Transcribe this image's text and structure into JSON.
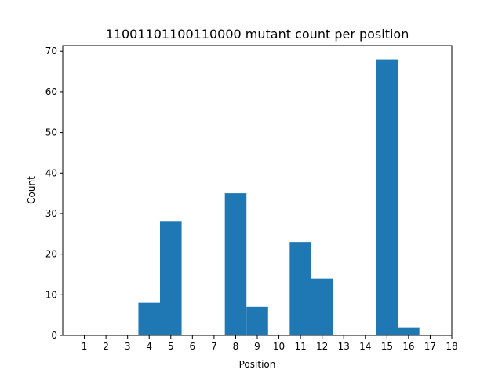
{
  "chart_data": {
    "type": "bar",
    "title": "11001101100110000 mutant count per position",
    "xlabel": "Position",
    "ylabel": "Count",
    "x_ticks": [
      1,
      2,
      3,
      4,
      5,
      6,
      7,
      8,
      9,
      10,
      11,
      12,
      13,
      14,
      15,
      16,
      17,
      18
    ],
    "x_range": [
      0,
      18
    ],
    "ylim": [
      0,
      71.4
    ],
    "y_ticks": [
      0,
      10,
      20,
      30,
      40,
      50,
      60,
      70
    ],
    "bar_color": "#1f77b4",
    "bars": [
      {
        "x_start": 3.5,
        "x_end": 4.5,
        "value": 8
      },
      {
        "x_start": 4.5,
        "x_end": 5.5,
        "value": 28
      },
      {
        "x_start": 7.5,
        "x_end": 8.5,
        "value": 35
      },
      {
        "x_start": 8.5,
        "x_end": 9.5,
        "value": 7
      },
      {
        "x_start": 10.5,
        "x_end": 11.5,
        "value": 23
      },
      {
        "x_start": 11.5,
        "x_end": 12.5,
        "value": 14
      },
      {
        "x_start": 14.5,
        "x_end": 15.5,
        "value": 68
      },
      {
        "x_start": 15.5,
        "x_end": 16.5,
        "value": 2
      }
    ],
    "grid": false,
    "legend": "none"
  }
}
